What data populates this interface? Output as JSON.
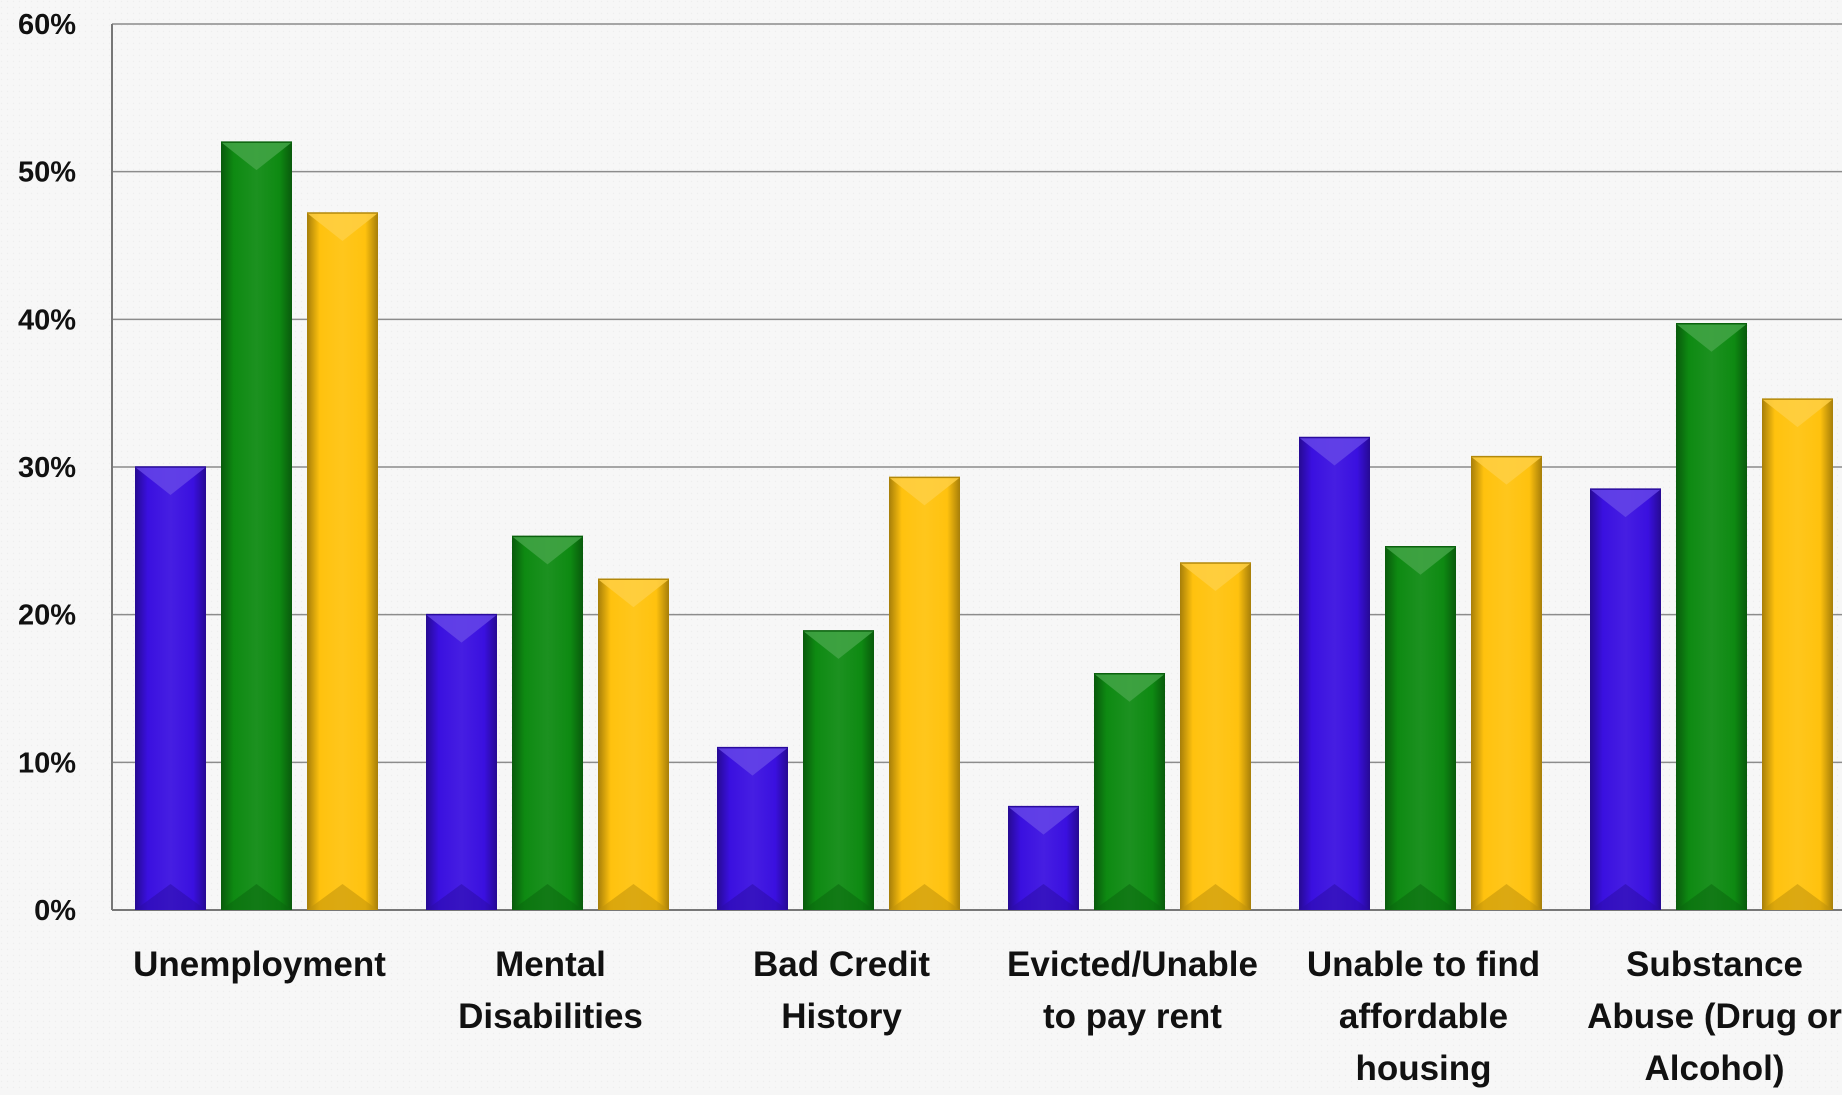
{
  "chart_data": {
    "type": "bar",
    "title": "",
    "xlabel": "",
    "ylabel": "",
    "ylim": [
      0,
      60
    ],
    "y_tick_labels": [
      "0%",
      "10%",
      "20%",
      "30%",
      "40%",
      "50%",
      "60%"
    ],
    "y_tick_values": [
      0,
      10,
      20,
      30,
      40,
      50,
      60
    ],
    "grid": true,
    "legend": "none",
    "categories": [
      "Unemployment",
      "Mental Disabilities",
      "Bad Credit History",
      "Evicted/Unable to pay rent",
      "Unable to find affordable housing",
      "Substance Abuse (Drug or Alcohol)"
    ],
    "category_label_lines": [
      [
        "Unemployment"
      ],
      [
        "Mental",
        "Disabilities"
      ],
      [
        "Bad Credit",
        "History"
      ],
      [
        "Evicted/Unable",
        "to pay rent"
      ],
      [
        "Unable to find",
        "affordable",
        "housing"
      ],
      [
        "Substance",
        "Abuse (Drug or",
        "Alcohol)"
      ]
    ],
    "series": [
      {
        "color": "#3a10e0",
        "values": [
          30,
          20,
          11,
          7,
          32,
          28.5
        ]
      },
      {
        "color": "#0e8a12",
        "values": [
          52,
          25.3,
          18.9,
          16,
          24.6,
          39.7
        ]
      },
      {
        "color": "#ffc20e",
        "values": [
          47.2,
          22.4,
          29.3,
          23.5,
          30.7,
          34.6
        ]
      }
    ]
  }
}
